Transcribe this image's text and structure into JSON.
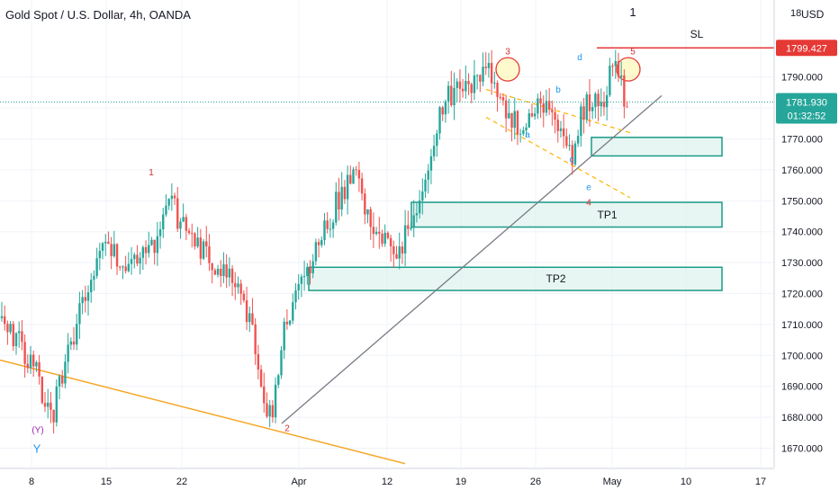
{
  "header": {
    "title": "Gold Spot / U.S. Dollar, 4h, OANDA",
    "currency": "USD",
    "top_axis_label": "18"
  },
  "price_tags": {
    "sl_price": "1799.427",
    "last_price": "1781.930",
    "countdown": "01:32:52"
  },
  "colors": {
    "up": "#26a69a",
    "down": "#ef5350",
    "zone_fill": "#dff3ee",
    "zone_border": "#1a9b87",
    "trendline": "#787b86",
    "orange_line": "#f5a623",
    "sl_line": "#e53935",
    "wave_red": "#d32f2f",
    "wave_blue": "#2196f3",
    "wave_purple": "#9c27b0"
  },
  "annotations": {
    "tp1": "TP1",
    "tp2": "TP2",
    "sl": "SL",
    "wave_top_1": "1",
    "wave_1": "1",
    "wave_2": "2",
    "wave_3": "3",
    "wave_4": "4",
    "wave_5": "5",
    "wave_a": "a",
    "wave_b": "b",
    "wave_c": "c",
    "wave_d": "d",
    "wave_e": "e",
    "wave_y_paren": "(Y)",
    "wave_y": "Y"
  },
  "chart_data": {
    "type": "candlestick",
    "instrument": "Gold Spot / U.S. Dollar",
    "timeframe": "4h",
    "y_ticks": [
      1670,
      1680,
      1690,
      1700,
      1710,
      1720,
      1730,
      1740,
      1750,
      1760,
      1770,
      1780,
      1790
    ],
    "y_tick_labels": [
      "1670.000",
      "1680.000",
      "1690.000",
      "1700.000",
      "1710.000",
      "1720.000",
      "1730.000",
      "1740.000",
      "1750.000",
      "1760.000",
      "1770.000",
      "1780.000",
      "1790.000"
    ],
    "x_tick_labels": [
      "8",
      "15",
      "22",
      "Apr",
      "12",
      "19",
      "26",
      "May",
      "10",
      "17"
    ],
    "ylim": [
      1664,
      1820
    ],
    "grid": true,
    "close_path": [
      [
        0,
        1712
      ],
      [
        4,
        1695
      ],
      [
        5.8,
        1678
      ],
      [
        7,
        1693
      ],
      [
        9,
        1712
      ],
      [
        10.5,
        1722
      ],
      [
        12,
        1738
      ],
      [
        14.5,
        1728
      ],
      [
        17,
        1732
      ],
      [
        18.5,
        1738
      ],
      [
        19.7,
        1752
      ],
      [
        21,
        1742
      ],
      [
        24,
        1732
      ],
      [
        26.5,
        1728
      ],
      [
        28.5,
        1718
      ],
      [
        30,
        1700
      ],
      [
        31.3,
        1681
      ],
      [
        32,
        1685
      ],
      [
        33.5,
        1712
      ],
      [
        36,
        1728
      ],
      [
        38,
        1742
      ],
      [
        40,
        1752
      ],
      [
        41.5,
        1758
      ],
      [
        43,
        1747
      ],
      [
        45,
        1737
      ],
      [
        46.5,
        1731
      ],
      [
        48,
        1743
      ],
      [
        49.5,
        1750
      ],
      [
        50.5,
        1768
      ],
      [
        51.5,
        1778
      ],
      [
        53,
        1785
      ],
      [
        54.5,
        1785
      ],
      [
        56.5,
        1794
      ],
      [
        57.5,
        1792
      ],
      [
        59,
        1780
      ],
      [
        61,
        1773
      ],
      [
        63,
        1782
      ],
      [
        64.5,
        1781
      ],
      [
        66,
        1772
      ],
      [
        67,
        1763
      ],
      [
        68,
        1779
      ],
      [
        69,
        1783
      ],
      [
        70.5,
        1781
      ],
      [
        71.5,
        1793
      ],
      [
        72.5,
        1790
      ],
      [
        73.5,
        1778
      ]
    ],
    "zones": [
      {
        "label": "",
        "price_low": 1764.5,
        "price_high": 1770.5
      },
      {
        "label": "TP1",
        "price_low": 1741.5,
        "price_high": 1749.5
      },
      {
        "label": "TP2",
        "price_low": 1721,
        "price_high": 1728.5
      }
    ],
    "lines": {
      "stop_loss": 1799.427,
      "last_price": 1781.93
    }
  }
}
